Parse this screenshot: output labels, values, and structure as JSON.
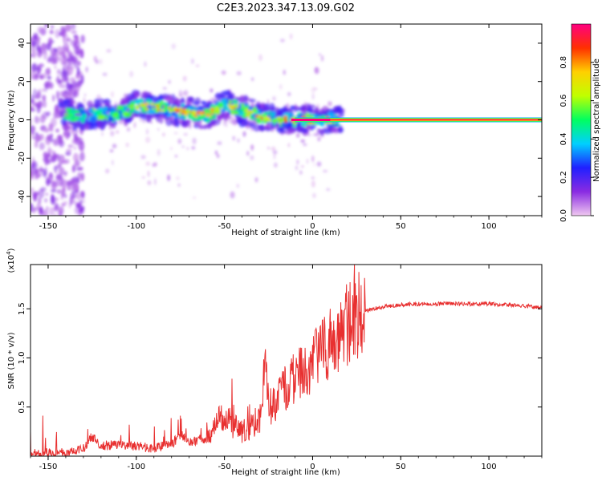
{
  "title": "C2E3.2023.347.13.09.G02",
  "chart_data": [
    {
      "type": "heatmap",
      "xlabel": "Height of straight line (km)",
      "ylabel": "Frequency (Hz)",
      "xlim": [
        -160,
        130
      ],
      "ylim": [
        -50,
        50
      ],
      "xticks": [
        -150,
        -100,
        -50,
        0,
        50,
        100
      ],
      "yticks": [
        -40,
        -20,
        0,
        20,
        40
      ],
      "ridge": {
        "x": [
          -140,
          -130,
          -120,
          -110,
          -100,
          -90,
          -80,
          -70,
          -60,
          -50,
          -40,
          -30,
          -20,
          -10,
          0,
          10,
          130
        ],
        "y": [
          3,
          2,
          3,
          3,
          7,
          7,
          5,
          4,
          2,
          8,
          5,
          2,
          0,
          0,
          0,
          0,
          0
        ]
      },
      "colorbar": {
        "label": "Normalized spectral amplitude",
        "range": [
          0,
          1
        ],
        "ticks": [
          0.0,
          0.2,
          0.4,
          0.6,
          0.8
        ],
        "colors": [
          "#f0c8f0",
          "#8a2be2",
          "#2020ff",
          "#00d0ff",
          "#00ff60",
          "#c0ff00",
          "#ffd000",
          "#ff3000",
          "#ff0080"
        ]
      }
    },
    {
      "type": "line",
      "xlabel": "Height of straight line (km)",
      "ylabel": "SNR (10 * v/v)",
      "y_multiplier": "(x10",
      "y_multiplier_exp": "4",
      "y_multiplier_close": ")",
      "xlim": [
        -160,
        130
      ],
      "ylim": [
        0,
        1.95
      ],
      "xticks": [
        -150,
        -100,
        -50,
        0,
        50,
        100
      ],
      "yticks": [
        0.5,
        1.0,
        1.5
      ],
      "ytick_labels": [
        "0.5",
        "1.0",
        "1.5"
      ],
      "series": [
        {
          "name": "SNR",
          "color": "#e83030",
          "x": [
            -160,
            -150,
            -140,
            -130,
            -125,
            -120,
            -110,
            -100,
            -90,
            -80,
            -75,
            -70,
            -60,
            -55,
            -50,
            -45,
            -40,
            -35,
            -30,
            -27,
            -25,
            -20,
            -15,
            -10,
            -5,
            0,
            5,
            10,
            15,
            20,
            25,
            30,
            40,
            50,
            60,
            70,
            80,
            90,
            100,
            110,
            120,
            130
          ],
          "y": [
            0.02,
            0.03,
            0.04,
            0.08,
            0.2,
            0.1,
            0.12,
            0.1,
            0.08,
            0.12,
            0.22,
            0.15,
            0.18,
            0.3,
            0.45,
            0.3,
            0.25,
            0.3,
            0.4,
            1.0,
            0.5,
            0.55,
            0.7,
            0.8,
            0.85,
            0.95,
            1.05,
            1.15,
            1.25,
            1.35,
            1.42,
            1.48,
            1.52,
            1.54,
            1.55,
            1.55,
            1.55,
            1.55,
            1.55,
            1.54,
            1.53,
            1.51
          ]
        }
      ]
    }
  ]
}
